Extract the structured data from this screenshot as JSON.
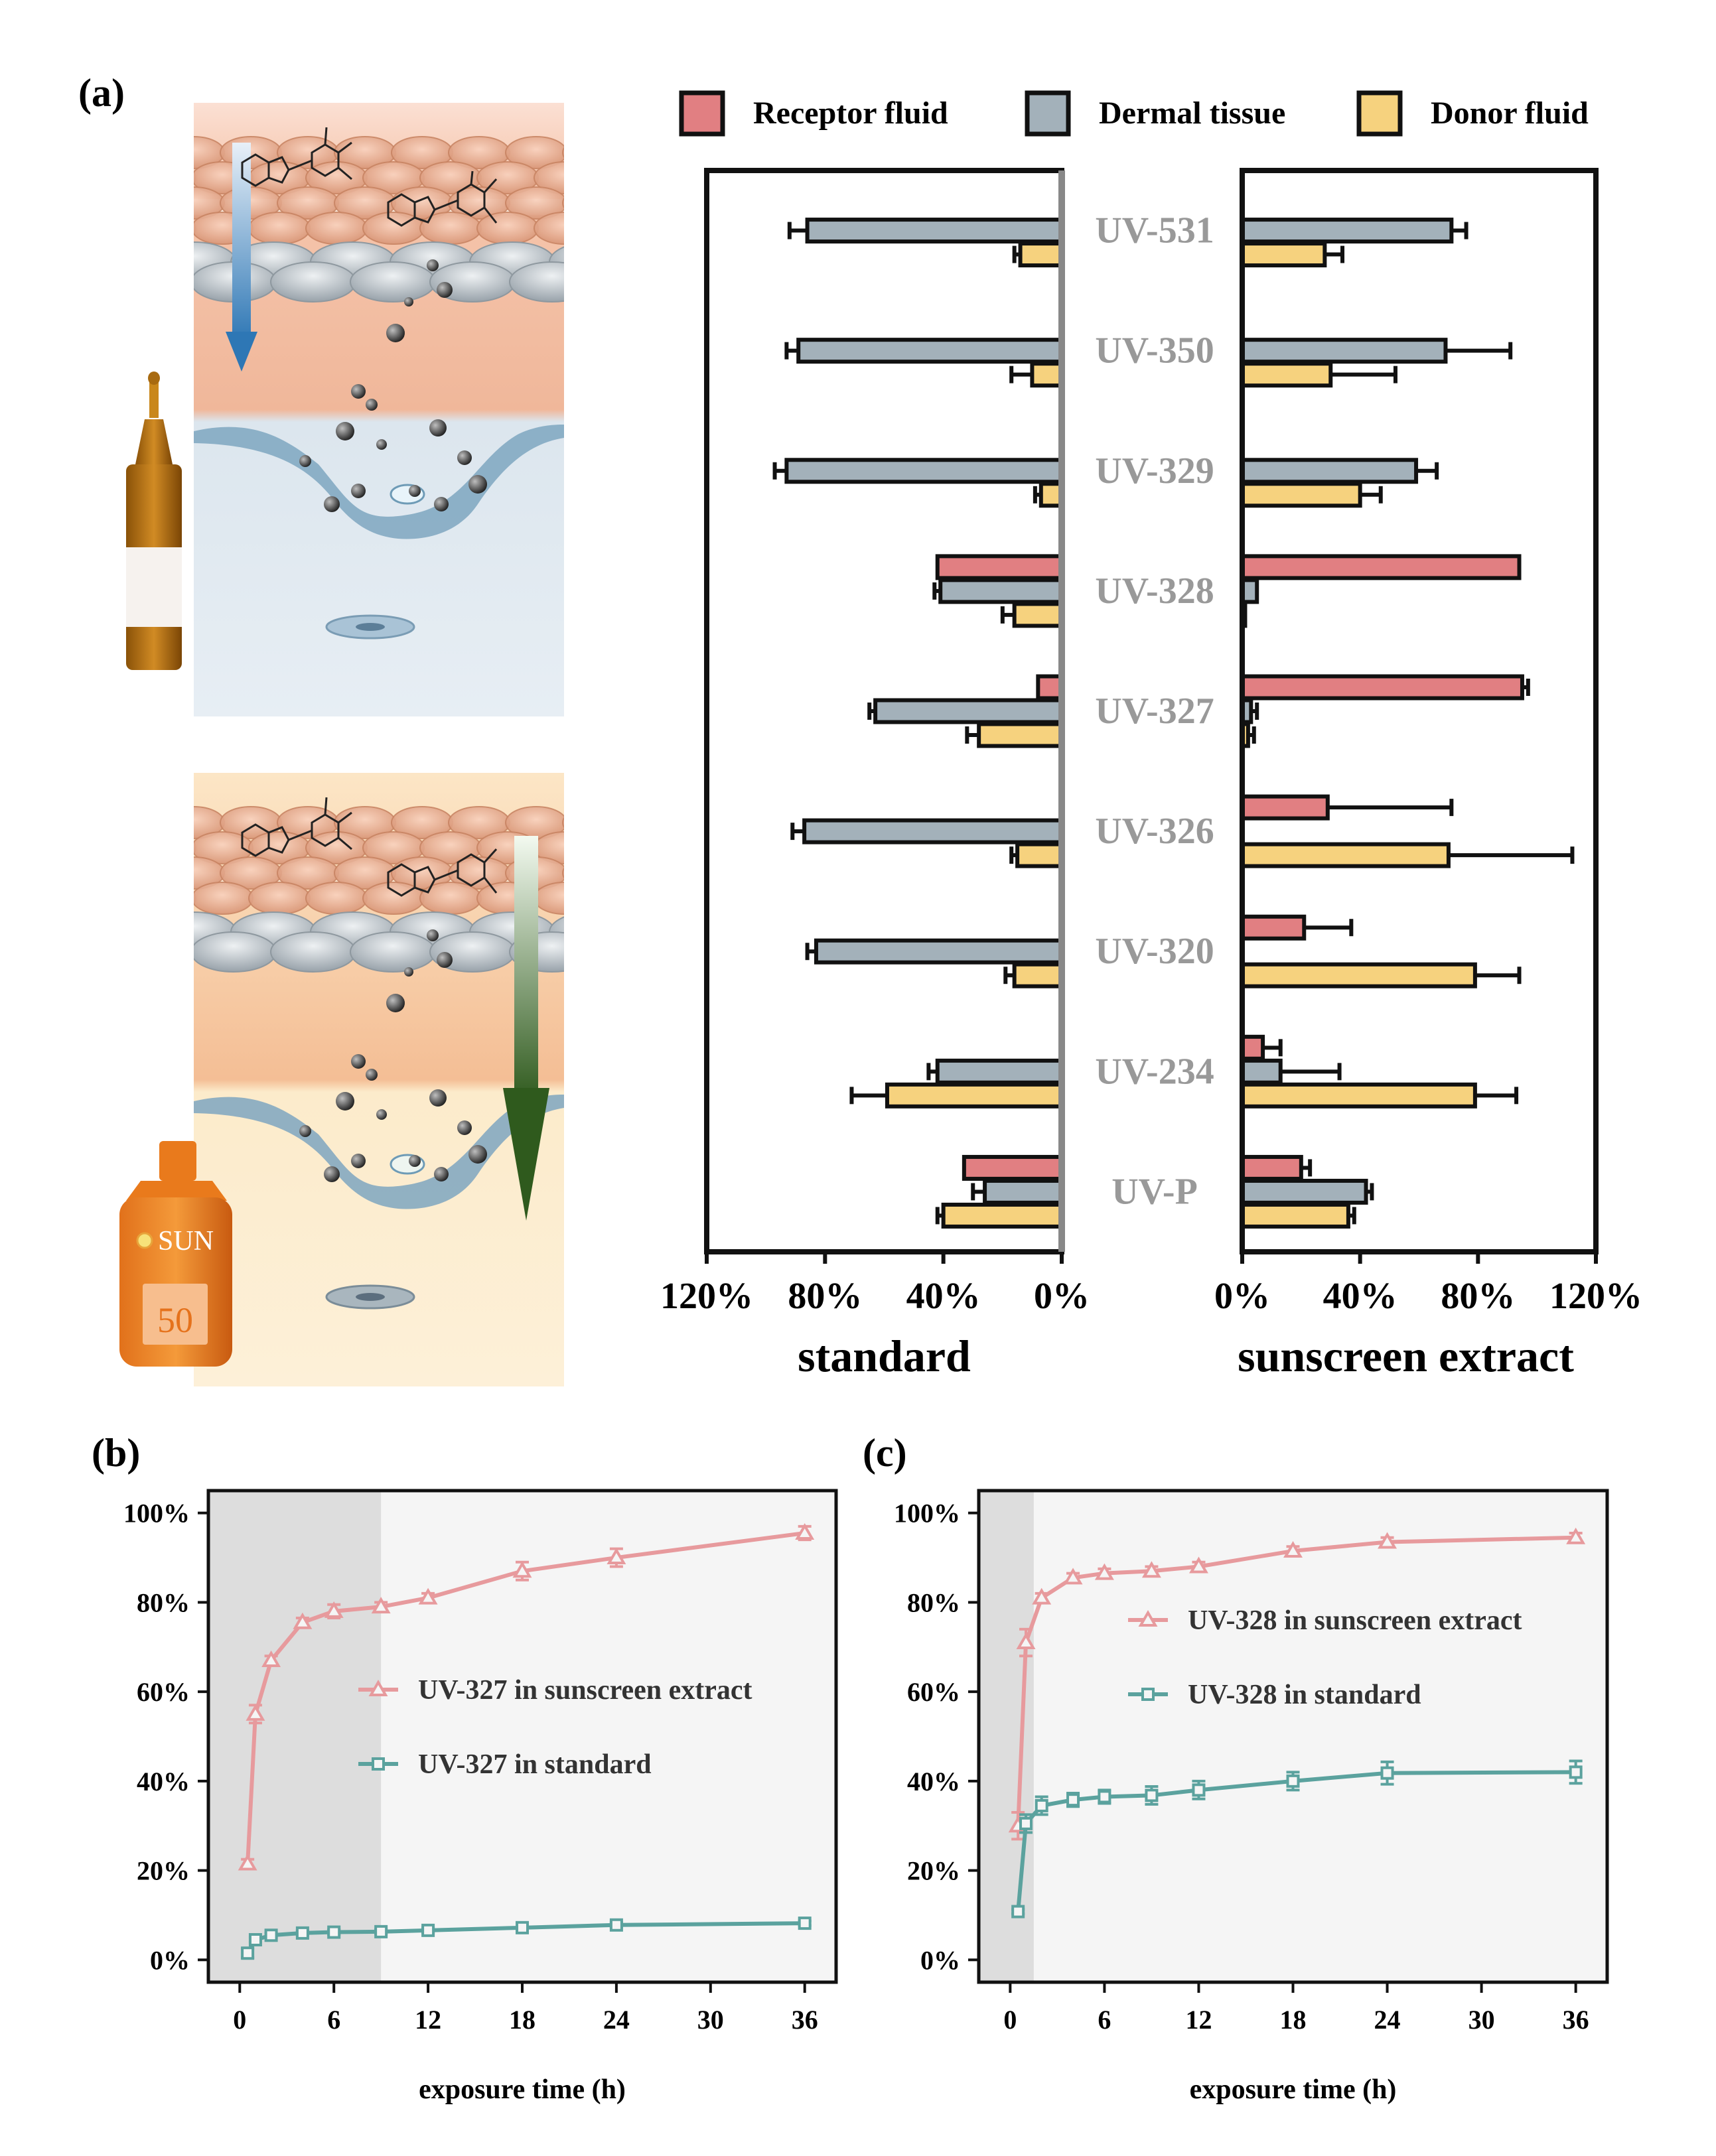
{
  "panel_labels": {
    "a": "(a)",
    "b": "(b)",
    "c": "(c)"
  },
  "illustration": {
    "sun_label": "SUN",
    "spf": "50"
  },
  "legend": [
    {
      "label": "Receptor fluid",
      "color": "#E17F82"
    },
    {
      "label": "Dermal tissue",
      "color": "#A3B1BA"
    },
    {
      "label": "Donor fluid",
      "color": "#F6D27E"
    }
  ],
  "colors": {
    "receptor": "#E17F82",
    "dermal": "#A3B1BA",
    "donor": "#F6D27E",
    "pink_line": "#E79A9D",
    "teal_line": "#5BA29E",
    "compound_label": "#999999"
  },
  "chart_data": [
    {
      "type": "bar",
      "orientation": "horizontal-mirrored",
      "title": "",
      "categories": [
        "UV-531",
        "UV-350",
        "UV-329",
        "UV-328",
        "UV-327",
        "UV-326",
        "UV-320",
        "UV-234",
        "UV-P"
      ],
      "left": {
        "xlabel": "standard",
        "xlim": [
          120,
          0
        ],
        "ticks": [
          "120%",
          "80%",
          "40%",
          "0%"
        ],
        "tick_values": [
          120,
          80,
          40,
          0
        ],
        "series": [
          {
            "name": "Receptor fluid",
            "values": [
              0,
              0,
              0,
              42,
              8,
              0,
              0,
              0,
              33
            ],
            "errors": [
              0,
              0,
              0,
              0,
              0,
              0,
              0,
              0,
              0
            ]
          },
          {
            "name": "Dermal tissue",
            "values": [
              86,
              89,
              93,
              41,
              63,
              87,
              83,
              42,
              26
            ],
            "errors": [
              6,
              4,
              4,
              2,
              2,
              4,
              3,
              3,
              4
            ]
          },
          {
            "name": "Donor fluid",
            "values": [
              14,
              10,
              7,
              16,
              28,
              15,
              16,
              59,
              40
            ],
            "errors": [
              2,
              7,
              2,
              4,
              4,
              2,
              3,
              12,
              2
            ]
          }
        ]
      },
      "right": {
        "xlabel": "sunscreen extract",
        "xlim": [
          0,
          120
        ],
        "ticks": [
          "0%",
          "40%",
          "80%",
          "120%"
        ],
        "tick_values": [
          0,
          40,
          80,
          120
        ],
        "series": [
          {
            "name": "Receptor fluid",
            "values": [
              0,
              0,
              0,
              94,
              95,
              29,
              21,
              7,
              20
            ],
            "errors": [
              0,
              0,
              0,
              0,
              2,
              42,
              16,
              6,
              3
            ]
          },
          {
            "name": "Dermal tissue",
            "values": [
              71,
              69,
              59,
              5,
              3,
              0,
              0,
              13,
              42
            ],
            "errors": [
              5,
              22,
              7,
              0,
              2,
              0,
              0,
              20,
              2
            ]
          },
          {
            "name": "Donor fluid",
            "values": [
              28,
              30,
              40,
              1,
              2,
              70,
              79,
              79,
              36
            ],
            "errors": [
              6,
              22,
              7,
              0,
              2,
              42,
              15,
              14,
              2
            ]
          }
        ]
      }
    },
    {
      "type": "line",
      "title": "",
      "xlabel": "exposure time (h)",
      "ylabel": "",
      "xlim": [
        -2,
        38
      ],
      "ylim": [
        -5,
        105
      ],
      "xticks": [
        0,
        6,
        12,
        18,
        24,
        30,
        36
      ],
      "yticks": [
        "0%",
        "20%",
        "40%",
        "60%",
        "80%",
        "100%"
      ],
      "ytick_values": [
        0,
        20,
        40,
        60,
        80,
        100
      ],
      "shaded_until": 9,
      "series": [
        {
          "name": "UV-327 in sunscreen extract",
          "marker": "triangle",
          "x": [
            0.5,
            1,
            2,
            4,
            6,
            9,
            12,
            18,
            24,
            36
          ],
          "y": [
            21.5,
            55,
            67,
            75.5,
            78,
            79,
            81,
            87,
            90,
            95.5
          ],
          "errors": [
            1,
            2,
            1,
            1,
            1.5,
            1,
            1,
            2,
            2,
            1.5
          ]
        },
        {
          "name": "UV-327 in standard",
          "marker": "square",
          "x": [
            0.5,
            1,
            2,
            4,
            6,
            9,
            12,
            18,
            24,
            36
          ],
          "y": [
            1.5,
            4.5,
            5.5,
            6,
            6.2,
            6.3,
            6.6,
            7.2,
            7.8,
            8.2
          ],
          "errors": [
            1,
            0.5,
            0.5,
            0.5,
            0.5,
            0.5,
            0.5,
            0.5,
            0.5,
            0.5
          ]
        }
      ]
    },
    {
      "type": "line",
      "title": "",
      "xlabel": "exposure time (h)",
      "ylabel": "",
      "xlim": [
        -2,
        38
      ],
      "ylim": [
        -5,
        105
      ],
      "xticks": [
        0,
        6,
        12,
        18,
        24,
        30,
        36
      ],
      "yticks": [
        "0%",
        "20%",
        "40%",
        "60%",
        "80%",
        "100%"
      ],
      "ytick_values": [
        0,
        20,
        40,
        60,
        80,
        100
      ],
      "shaded_until": 1.5,
      "series": [
        {
          "name": "UV-328 in sunscreen extract",
          "marker": "triangle",
          "x": [
            0.5,
            1,
            2,
            4,
            6,
            9,
            12,
            18,
            24,
            36
          ],
          "y": [
            30,
            71,
            81,
            85.5,
            86.5,
            87,
            88,
            91.5,
            93.5,
            94.5
          ],
          "errors": [
            3,
            3,
            1,
            1,
            1,
            1,
            1,
            1,
            1,
            1
          ]
        },
        {
          "name": "UV-328 in standard",
          "marker": "square",
          "x": [
            0.5,
            1,
            2,
            4,
            6,
            9,
            12,
            18,
            24,
            36
          ],
          "y": [
            10.8,
            30.5,
            34.5,
            35.8,
            36.5,
            36.8,
            38,
            40,
            41.8,
            42
          ],
          "errors": [
            0.5,
            2,
            2,
            1.5,
            1.5,
            2,
            2,
            2,
            2.5,
            2.5
          ]
        }
      ]
    }
  ]
}
